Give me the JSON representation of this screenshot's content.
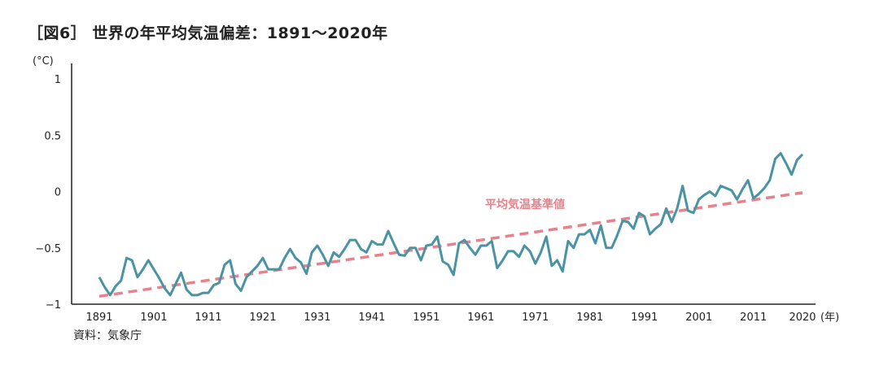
{
  "title": "［図6］ 世界の年平均気温偏差：1891〜2020年",
  "source": "資料：気象庁",
  "chart_data": {
    "type": "line",
    "title": "［図6］ 世界の年平均気温偏差：1891〜2020年",
    "ylabel": "(°C)",
    "xlabel": "(年)",
    "xlim": [
      1891,
      2020
    ],
    "ylim": [
      -1,
      1
    ],
    "yticks": [
      {
        "v": 1,
        "label": "1"
      },
      {
        "v": 0.5,
        "label": "0.5"
      },
      {
        "v": 0,
        "label": "0"
      },
      {
        "v": -0.5,
        "label": "−0.5"
      },
      {
        "v": -1,
        "label": "−1"
      }
    ],
    "xticks": [
      1891,
      1901,
      1911,
      1921,
      1931,
      1941,
      1951,
      1961,
      1971,
      1981,
      1991,
      2001,
      2011,
      2020
    ],
    "grid": false,
    "colors": {
      "series": "#4a93a3",
      "baseline": "#e8818b"
    },
    "x_start": 1891,
    "series": [
      {
        "values": [
          -0.76,
          -0.85,
          -0.92,
          -0.84,
          -0.79,
          -0.59,
          -0.61,
          -0.76,
          -0.69,
          -0.61,
          -0.69,
          -0.77,
          -0.86,
          -0.92,
          -0.82,
          -0.72,
          -0.87,
          -0.92,
          -0.92,
          -0.9,
          -0.9,
          -0.83,
          -0.81,
          -0.65,
          -0.61,
          -0.82,
          -0.88,
          -0.76,
          -0.71,
          -0.66,
          -0.59,
          -0.69,
          -0.69,
          -0.69,
          -0.59,
          -0.51,
          -0.59,
          -0.63,
          -0.73,
          -0.54,
          -0.48,
          -0.56,
          -0.66,
          -0.54,
          -0.58,
          -0.51,
          -0.43,
          -0.43,
          -0.51,
          -0.54,
          -0.44,
          -0.47,
          -0.47,
          -0.35,
          -0.46,
          -0.56,
          -0.57,
          -0.5,
          -0.5,
          -0.61,
          -0.48,
          -0.47,
          -0.4,
          -0.62,
          -0.65,
          -0.74,
          -0.46,
          -0.43,
          -0.5,
          -0.56,
          -0.48,
          -0.48,
          -0.44,
          -0.68,
          -0.61,
          -0.53,
          -0.53,
          -0.58,
          -0.48,
          -0.53,
          -0.64,
          -0.54,
          -0.4,
          -0.66,
          -0.61,
          -0.71,
          -0.44,
          -0.5,
          -0.38,
          -0.38,
          -0.34,
          -0.46,
          -0.3,
          -0.5,
          -0.5,
          -0.39,
          -0.26,
          -0.27,
          -0.33,
          -0.19,
          -0.22,
          -0.38,
          -0.33,
          -0.29,
          -0.15,
          -0.27,
          -0.15,
          0.05,
          -0.17,
          -0.19,
          -0.07,
          -0.03,
          0.0,
          -0.04,
          0.05,
          0.03,
          0.01,
          -0.07,
          0.02,
          0.1,
          -0.06,
          -0.02,
          0.03,
          0.1,
          0.29,
          0.34,
          0.25,
          0.15,
          0.28,
          0.33
        ]
      }
    ],
    "baseline": {
      "label": "平均気温基準値",
      "from": [
        1891,
        -0.93
      ],
      "to": [
        2020,
        -0.01
      ]
    }
  }
}
